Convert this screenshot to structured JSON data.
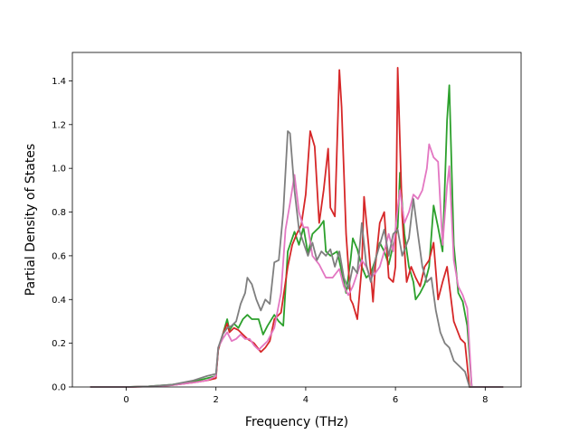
{
  "chart_data": {
    "type": "line",
    "title": "",
    "xlabel": "Frequency (THz)",
    "ylabel": "Partial Density of States",
    "xlim": [
      -1.2,
      8.8
    ],
    "ylim": [
      0,
      1.53
    ],
    "xticks": [
      0,
      2,
      4,
      6,
      8
    ],
    "yticks": [
      0.0,
      0.2,
      0.4,
      0.6,
      0.8,
      1.0,
      1.2,
      1.4
    ],
    "xtick_labels": [
      "0",
      "2",
      "4",
      "6",
      "8"
    ],
    "ytick_labels": [
      "0.0",
      "0.2",
      "0.4",
      "0.6",
      "0.8",
      "1.0",
      "1.2",
      "1.4"
    ],
    "grid": false,
    "series": [
      {
        "color": "#2ca02c",
        "points": [
          [
            -0.8,
            0
          ],
          [
            0,
            0
          ],
          [
            0.5,
            0.003
          ],
          [
            1,
            0.01
          ],
          [
            1.5,
            0.025
          ],
          [
            1.8,
            0.04
          ],
          [
            2.0,
            0.05
          ],
          [
            2.05,
            0.17
          ],
          [
            2.15,
            0.24
          ],
          [
            2.25,
            0.31
          ],
          [
            2.3,
            0.26
          ],
          [
            2.4,
            0.29
          ],
          [
            2.5,
            0.27
          ],
          [
            2.6,
            0.31
          ],
          [
            2.7,
            0.33
          ],
          [
            2.8,
            0.31
          ],
          [
            2.95,
            0.31
          ],
          [
            3.05,
            0.24
          ],
          [
            3.15,
            0.28
          ],
          [
            3.3,
            0.33
          ],
          [
            3.4,
            0.3
          ],
          [
            3.5,
            0.28
          ],
          [
            3.6,
            0.62
          ],
          [
            3.7,
            0.68
          ],
          [
            3.75,
            0.71
          ],
          [
            3.85,
            0.65
          ],
          [
            3.95,
            0.73
          ],
          [
            4.05,
            0.61
          ],
          [
            4.15,
            0.7
          ],
          [
            4.3,
            0.73
          ],
          [
            4.4,
            0.76
          ],
          [
            4.45,
            0.62
          ],
          [
            4.55,
            0.6
          ],
          [
            4.7,
            0.62
          ],
          [
            4.8,
            0.53
          ],
          [
            4.9,
            0.43
          ],
          [
            5.0,
            0.58
          ],
          [
            5.05,
            0.68
          ],
          [
            5.15,
            0.63
          ],
          [
            5.25,
            0.55
          ],
          [
            5.35,
            0.5
          ],
          [
            5.45,
            0.52
          ],
          [
            5.55,
            0.58
          ],
          [
            5.65,
            0.66
          ],
          [
            5.75,
            0.62
          ],
          [
            5.85,
            0.56
          ],
          [
            5.95,
            0.65
          ],
          [
            6.05,
            0.73
          ],
          [
            6.1,
            0.98
          ],
          [
            6.2,
            0.7
          ],
          [
            6.3,
            0.55
          ],
          [
            6.4,
            0.48
          ],
          [
            6.45,
            0.4
          ],
          [
            6.55,
            0.43
          ],
          [
            6.65,
            0.47
          ],
          [
            6.75,
            0.55
          ],
          [
            6.85,
            0.83
          ],
          [
            6.95,
            0.73
          ],
          [
            7.05,
            0.62
          ],
          [
            7.15,
            1.22
          ],
          [
            7.2,
            1.38
          ],
          [
            7.3,
            0.65
          ],
          [
            7.4,
            0.43
          ],
          [
            7.5,
            0.39
          ],
          [
            7.6,
            0.28
          ],
          [
            7.7,
            0
          ],
          [
            8.4,
            0
          ]
        ]
      },
      {
        "color": "#d62728",
        "points": [
          [
            -0.8,
            0
          ],
          [
            0,
            0
          ],
          [
            0.5,
            0.002
          ],
          [
            1,
            0.008
          ],
          [
            1.5,
            0.02
          ],
          [
            1.8,
            0.03
          ],
          [
            2.0,
            0.04
          ],
          [
            2.05,
            0.17
          ],
          [
            2.15,
            0.24
          ],
          [
            2.25,
            0.29
          ],
          [
            2.3,
            0.25
          ],
          [
            2.4,
            0.27
          ],
          [
            2.5,
            0.26
          ],
          [
            2.6,
            0.24
          ],
          [
            2.7,
            0.22
          ],
          [
            2.85,
            0.2
          ],
          [
            3.0,
            0.16
          ],
          [
            3.1,
            0.18
          ],
          [
            3.2,
            0.21
          ],
          [
            3.3,
            0.31
          ],
          [
            3.45,
            0.34
          ],
          [
            3.6,
            0.55
          ],
          [
            3.7,
            0.65
          ],
          [
            3.8,
            0.7
          ],
          [
            3.9,
            0.74
          ],
          [
            4.0,
            0.88
          ],
          [
            4.1,
            1.17
          ],
          [
            4.2,
            1.1
          ],
          [
            4.3,
            0.75
          ],
          [
            4.4,
            0.9
          ],
          [
            4.5,
            1.09
          ],
          [
            4.55,
            0.82
          ],
          [
            4.65,
            0.78
          ],
          [
            4.75,
            1.45
          ],
          [
            4.8,
            1.28
          ],
          [
            4.9,
            0.7
          ],
          [
            5.0,
            0.4
          ],
          [
            5.05,
            0.38
          ],
          [
            5.15,
            0.31
          ],
          [
            5.25,
            0.55
          ],
          [
            5.3,
            0.87
          ],
          [
            5.4,
            0.65
          ],
          [
            5.5,
            0.39
          ],
          [
            5.55,
            0.55
          ],
          [
            5.65,
            0.75
          ],
          [
            5.75,
            0.8
          ],
          [
            5.85,
            0.5
          ],
          [
            5.95,
            0.48
          ],
          [
            6.0,
            0.55
          ],
          [
            6.05,
            1.46
          ],
          [
            6.15,
            0.78
          ],
          [
            6.25,
            0.48
          ],
          [
            6.35,
            0.55
          ],
          [
            6.45,
            0.5
          ],
          [
            6.55,
            0.46
          ],
          [
            6.65,
            0.55
          ],
          [
            6.75,
            0.58
          ],
          [
            6.85,
            0.66
          ],
          [
            6.95,
            0.4
          ],
          [
            7.05,
            0.48
          ],
          [
            7.15,
            0.55
          ],
          [
            7.3,
            0.3
          ],
          [
            7.45,
            0.22
          ],
          [
            7.55,
            0.2
          ],
          [
            7.65,
            0
          ],
          [
            8.4,
            0
          ]
        ]
      },
      {
        "color": "#e377c2",
        "points": [
          [
            -0.8,
            0
          ],
          [
            0,
            0
          ],
          [
            0.5,
            0.002
          ],
          [
            1,
            0.008
          ],
          [
            1.5,
            0.02
          ],
          [
            1.8,
            0.03
          ],
          [
            2.0,
            0.05
          ],
          [
            2.05,
            0.18
          ],
          [
            2.15,
            0.22
          ],
          [
            2.25,
            0.25
          ],
          [
            2.35,
            0.21
          ],
          [
            2.45,
            0.22
          ],
          [
            2.55,
            0.24
          ],
          [
            2.65,
            0.22
          ],
          [
            2.75,
            0.22
          ],
          [
            2.85,
            0.19
          ],
          [
            2.95,
            0.17
          ],
          [
            3.05,
            0.19
          ],
          [
            3.15,
            0.21
          ],
          [
            3.3,
            0.27
          ],
          [
            3.45,
            0.43
          ],
          [
            3.55,
            0.72
          ],
          [
            3.65,
            0.84
          ],
          [
            3.75,
            0.97
          ],
          [
            3.85,
            0.8
          ],
          [
            3.95,
            0.73
          ],
          [
            4.05,
            0.73
          ],
          [
            4.15,
            0.6
          ],
          [
            4.3,
            0.56
          ],
          [
            4.45,
            0.5
          ],
          [
            4.6,
            0.5
          ],
          [
            4.75,
            0.54
          ],
          [
            4.85,
            0.46
          ],
          [
            4.95,
            0.42
          ],
          [
            5.05,
            0.46
          ],
          [
            5.15,
            0.52
          ],
          [
            5.25,
            0.58
          ],
          [
            5.35,
            0.55
          ],
          [
            5.45,
            0.5
          ],
          [
            5.55,
            0.52
          ],
          [
            5.65,
            0.55
          ],
          [
            5.75,
            0.62
          ],
          [
            5.85,
            0.7
          ],
          [
            5.95,
            0.62
          ],
          [
            6.05,
            0.82
          ],
          [
            6.1,
            0.9
          ],
          [
            6.2,
            0.75
          ],
          [
            6.3,
            0.8
          ],
          [
            6.4,
            0.88
          ],
          [
            6.5,
            0.86
          ],
          [
            6.6,
            0.9
          ],
          [
            6.7,
            1.0
          ],
          [
            6.75,
            1.11
          ],
          [
            6.85,
            1.05
          ],
          [
            6.95,
            1.03
          ],
          [
            7.05,
            0.65
          ],
          [
            7.15,
            0.92
          ],
          [
            7.2,
            1.01
          ],
          [
            7.3,
            0.58
          ],
          [
            7.4,
            0.46
          ],
          [
            7.5,
            0.42
          ],
          [
            7.6,
            0.36
          ],
          [
            7.7,
            0
          ],
          [
            8.4,
            0
          ]
        ]
      },
      {
        "color": "#7f7f7f",
        "points": [
          [
            -0.8,
            0
          ],
          [
            0,
            0
          ],
          [
            0.5,
            0.003
          ],
          [
            1,
            0.01
          ],
          [
            1.5,
            0.03
          ],
          [
            1.8,
            0.05
          ],
          [
            2.0,
            0.06
          ],
          [
            2.05,
            0.18
          ],
          [
            2.15,
            0.24
          ],
          [
            2.25,
            0.27
          ],
          [
            2.35,
            0.28
          ],
          [
            2.45,
            0.3
          ],
          [
            2.55,
            0.38
          ],
          [
            2.65,
            0.43
          ],
          [
            2.7,
            0.5
          ],
          [
            2.8,
            0.47
          ],
          [
            2.9,
            0.4
          ],
          [
            3.0,
            0.35
          ],
          [
            3.1,
            0.4
          ],
          [
            3.2,
            0.38
          ],
          [
            3.3,
            0.57
          ],
          [
            3.4,
            0.58
          ],
          [
            3.5,
            0.8
          ],
          [
            3.6,
            1.17
          ],
          [
            3.65,
            1.16
          ],
          [
            3.75,
            0.9
          ],
          [
            3.85,
            0.72
          ],
          [
            3.95,
            0.66
          ],
          [
            4.05,
            0.6
          ],
          [
            4.15,
            0.66
          ],
          [
            4.25,
            0.58
          ],
          [
            4.35,
            0.62
          ],
          [
            4.45,
            0.6
          ],
          [
            4.55,
            0.63
          ],
          [
            4.65,
            0.55
          ],
          [
            4.75,
            0.62
          ],
          [
            4.85,
            0.5
          ],
          [
            4.95,
            0.45
          ],
          [
            5.05,
            0.55
          ],
          [
            5.15,
            0.52
          ],
          [
            5.25,
            0.75
          ],
          [
            5.35,
            0.56
          ],
          [
            5.45,
            0.48
          ],
          [
            5.55,
            0.58
          ],
          [
            5.65,
            0.65
          ],
          [
            5.75,
            0.72
          ],
          [
            5.85,
            0.6
          ],
          [
            5.95,
            0.7
          ],
          [
            6.05,
            0.72
          ],
          [
            6.15,
            0.6
          ],
          [
            6.3,
            0.68
          ],
          [
            6.4,
            0.86
          ],
          [
            6.5,
            0.7
          ],
          [
            6.6,
            0.55
          ],
          [
            6.7,
            0.48
          ],
          [
            6.8,
            0.5
          ],
          [
            6.9,
            0.35
          ],
          [
            7.0,
            0.25
          ],
          [
            7.1,
            0.2
          ],
          [
            7.2,
            0.18
          ],
          [
            7.3,
            0.12
          ],
          [
            7.45,
            0.09
          ],
          [
            7.55,
            0.07
          ],
          [
            7.65,
            0
          ],
          [
            8.4,
            0
          ]
        ]
      }
    ]
  }
}
